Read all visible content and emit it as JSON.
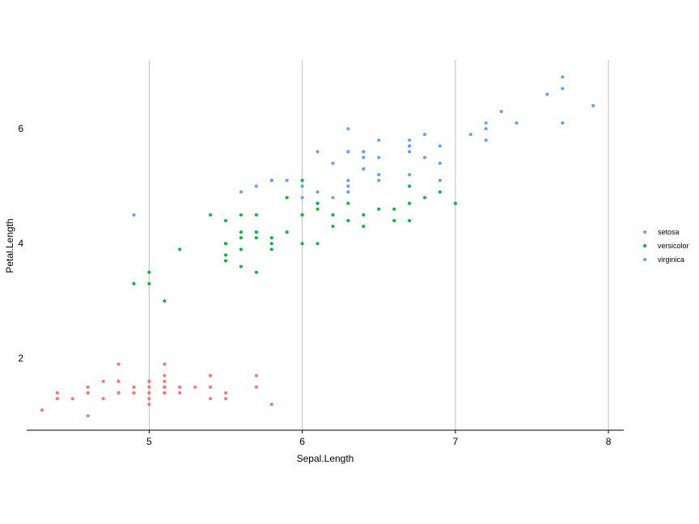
{
  "chart_data": {
    "type": "scatter",
    "title": "",
    "xlabel": "Sepal.Length",
    "ylabel": "Petal.Length",
    "xlim": [
      4.2,
      8.1
    ],
    "ylim": [
      0.75,
      7.2
    ],
    "x_ticks": [
      5,
      6,
      7,
      8
    ],
    "y_ticks": [
      2,
      4,
      6
    ],
    "grid": "vertical major lines only",
    "legend_position": "right",
    "series": [
      {
        "name": "setosa",
        "color": "#F8766D",
        "points": [
          [
            5.1,
            1.4
          ],
          [
            4.9,
            1.4
          ],
          [
            4.7,
            1.3
          ],
          [
            4.6,
            1.5
          ],
          [
            5.0,
            1.4
          ],
          [
            5.4,
            1.7
          ],
          [
            4.6,
            1.4
          ],
          [
            5.0,
            1.5
          ],
          [
            4.4,
            1.4
          ],
          [
            4.9,
            1.5
          ],
          [
            5.4,
            1.5
          ],
          [
            4.8,
            1.6
          ],
          [
            4.8,
            1.4
          ],
          [
            4.3,
            1.1
          ],
          [
            5.8,
            1.2
          ],
          [
            5.7,
            1.5
          ],
          [
            5.4,
            1.3
          ],
          [
            5.1,
            1.4
          ],
          [
            5.7,
            1.7
          ],
          [
            5.1,
            1.5
          ],
          [
            5.4,
            1.7
          ],
          [
            5.1,
            1.5
          ],
          [
            4.6,
            1.0
          ],
          [
            5.1,
            1.7
          ],
          [
            4.8,
            1.9
          ],
          [
            5.0,
            1.6
          ],
          [
            5.0,
            1.6
          ],
          [
            5.2,
            1.5
          ],
          [
            5.2,
            1.4
          ],
          [
            4.7,
            1.6
          ],
          [
            4.8,
            1.6
          ],
          [
            5.4,
            1.5
          ],
          [
            5.2,
            1.5
          ],
          [
            5.5,
            1.4
          ],
          [
            4.9,
            1.5
          ],
          [
            5.0,
            1.2
          ],
          [
            5.5,
            1.3
          ],
          [
            4.9,
            1.4
          ],
          [
            4.4,
            1.3
          ],
          [
            5.1,
            1.5
          ],
          [
            5.0,
            1.3
          ],
          [
            4.5,
            1.3
          ],
          [
            4.4,
            1.3
          ],
          [
            5.0,
            1.6
          ],
          [
            5.1,
            1.9
          ],
          [
            4.8,
            1.4
          ],
          [
            5.1,
            1.6
          ],
          [
            4.6,
            1.4
          ],
          [
            5.3,
            1.5
          ],
          [
            5.0,
            1.4
          ]
        ]
      },
      {
        "name": "versicolor",
        "color": "#00BA38",
        "points": [
          [
            7.0,
            4.7
          ],
          [
            6.4,
            4.5
          ],
          [
            6.9,
            4.9
          ],
          [
            5.5,
            4.0
          ],
          [
            6.5,
            4.6
          ],
          [
            5.7,
            4.5
          ],
          [
            6.3,
            4.7
          ],
          [
            4.9,
            3.3
          ],
          [
            6.6,
            4.6
          ],
          [
            5.2,
            3.9
          ],
          [
            5.0,
            3.5
          ],
          [
            5.9,
            4.2
          ],
          [
            6.0,
            4.0
          ],
          [
            6.1,
            4.7
          ],
          [
            5.6,
            3.6
          ],
          [
            6.7,
            4.4
          ],
          [
            5.6,
            4.5
          ],
          [
            5.8,
            4.1
          ],
          [
            6.2,
            4.5
          ],
          [
            5.6,
            3.9
          ],
          [
            5.9,
            4.8
          ],
          [
            6.1,
            4.0
          ],
          [
            6.3,
            4.9
          ],
          [
            6.1,
            4.7
          ],
          [
            6.4,
            4.3
          ],
          [
            6.6,
            4.4
          ],
          [
            6.8,
            4.8
          ],
          [
            6.7,
            5.0
          ],
          [
            6.0,
            4.5
          ],
          [
            5.7,
            3.5
          ],
          [
            5.5,
            3.8
          ],
          [
            5.5,
            3.7
          ],
          [
            5.8,
            3.9
          ],
          [
            6.0,
            5.1
          ],
          [
            5.4,
            4.5
          ],
          [
            6.0,
            4.5
          ],
          [
            6.7,
            4.7
          ],
          [
            6.3,
            4.4
          ],
          [
            5.6,
            4.1
          ],
          [
            5.5,
            4.0
          ],
          [
            5.5,
            4.4
          ],
          [
            6.1,
            4.6
          ],
          [
            5.8,
            4.0
          ],
          [
            5.0,
            3.3
          ],
          [
            5.6,
            4.2
          ],
          [
            5.7,
            4.2
          ],
          [
            5.7,
            4.2
          ],
          [
            6.2,
            4.3
          ],
          [
            5.1,
            3.0
          ],
          [
            5.7,
            4.1
          ]
        ]
      },
      {
        "name": "virginica",
        "color": "#619CFF",
        "points": [
          [
            6.3,
            6.0
          ],
          [
            5.8,
            5.1
          ],
          [
            7.1,
            5.9
          ],
          [
            6.3,
            5.6
          ],
          [
            6.5,
            5.8
          ],
          [
            7.6,
            6.6
          ],
          [
            4.9,
            4.5
          ],
          [
            7.3,
            6.3
          ],
          [
            6.7,
            5.8
          ],
          [
            7.2,
            6.1
          ],
          [
            6.5,
            5.1
          ],
          [
            6.4,
            5.3
          ],
          [
            6.8,
            5.5
          ],
          [
            5.7,
            5.0
          ],
          [
            5.8,
            5.1
          ],
          [
            6.4,
            5.3
          ],
          [
            6.5,
            5.5
          ],
          [
            7.7,
            6.7
          ],
          [
            7.7,
            6.9
          ],
          [
            6.0,
            5.0
          ],
          [
            6.9,
            5.7
          ],
          [
            5.6,
            4.9
          ],
          [
            7.7,
            6.7
          ],
          [
            6.3,
            4.9
          ],
          [
            6.7,
            5.7
          ],
          [
            7.2,
            6.0
          ],
          [
            6.2,
            4.8
          ],
          [
            6.1,
            4.9
          ],
          [
            6.4,
            5.6
          ],
          [
            7.2,
            5.8
          ],
          [
            7.4,
            6.1
          ],
          [
            7.9,
            6.4
          ],
          [
            6.4,
            5.6
          ],
          [
            6.3,
            5.1
          ],
          [
            6.1,
            5.6
          ],
          [
            7.7,
            6.1
          ],
          [
            6.3,
            5.6
          ],
          [
            6.4,
            5.5
          ],
          [
            6.0,
            4.8
          ],
          [
            6.9,
            5.4
          ],
          [
            6.7,
            5.6
          ],
          [
            6.9,
            5.1
          ],
          [
            5.8,
            5.1
          ],
          [
            6.8,
            5.9
          ],
          [
            6.7,
            5.7
          ],
          [
            6.7,
            5.2
          ],
          [
            6.3,
            5.0
          ],
          [
            6.5,
            5.2
          ],
          [
            6.2,
            5.4
          ],
          [
            5.9,
            5.1
          ]
        ]
      }
    ]
  }
}
